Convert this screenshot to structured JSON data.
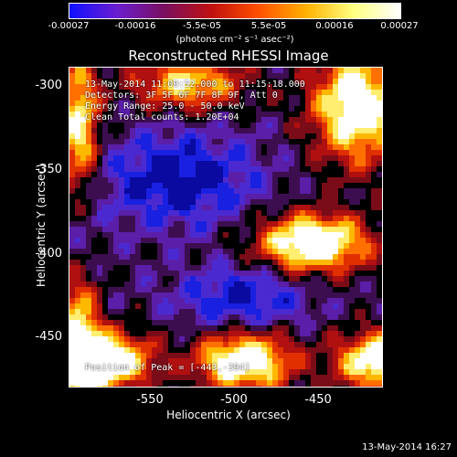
{
  "colorbar": {
    "ticks": [
      "-0.00027",
      "-0.00016",
      "-5.5e-05",
      "5.5e-05",
      "0.00016",
      "0.00027"
    ],
    "unit_label": "(photons cm⁻² s⁻¹ asec⁻²)",
    "colors": [
      "#1010ff",
      "#6a1ed0",
      "#7a0f60",
      "#c01010",
      "#ff5000",
      "#ffb000",
      "#ffff80",
      "#ffffff"
    ]
  },
  "image": {
    "title": "Reconstructed RHESSI Image",
    "annotations": {
      "time_range": "13-May-2014 11:09:52.000 to 11:15:18.000",
      "detectors": "Detectors: 3F 5F 6F 7F 8F 9F, Att 0",
      "energy_range": "Energy Range: 25.0 - 50.0 keV",
      "clean_counts": "Clean     Total counts: 1.20E+04",
      "peak_position": "Position of Peak = [-443,-394]"
    },
    "x_axis": {
      "label": "Heliocentric X (arcsec)",
      "ticks": [
        "-550",
        "-500",
        "-450"
      ]
    },
    "y_axis": {
      "label": "Heliocentric Y (arcsec)",
      "ticks": [
        "-300",
        "-350",
        "-400",
        "-450"
      ]
    }
  },
  "footer": {
    "date": "13-May-2014 16:27"
  }
}
